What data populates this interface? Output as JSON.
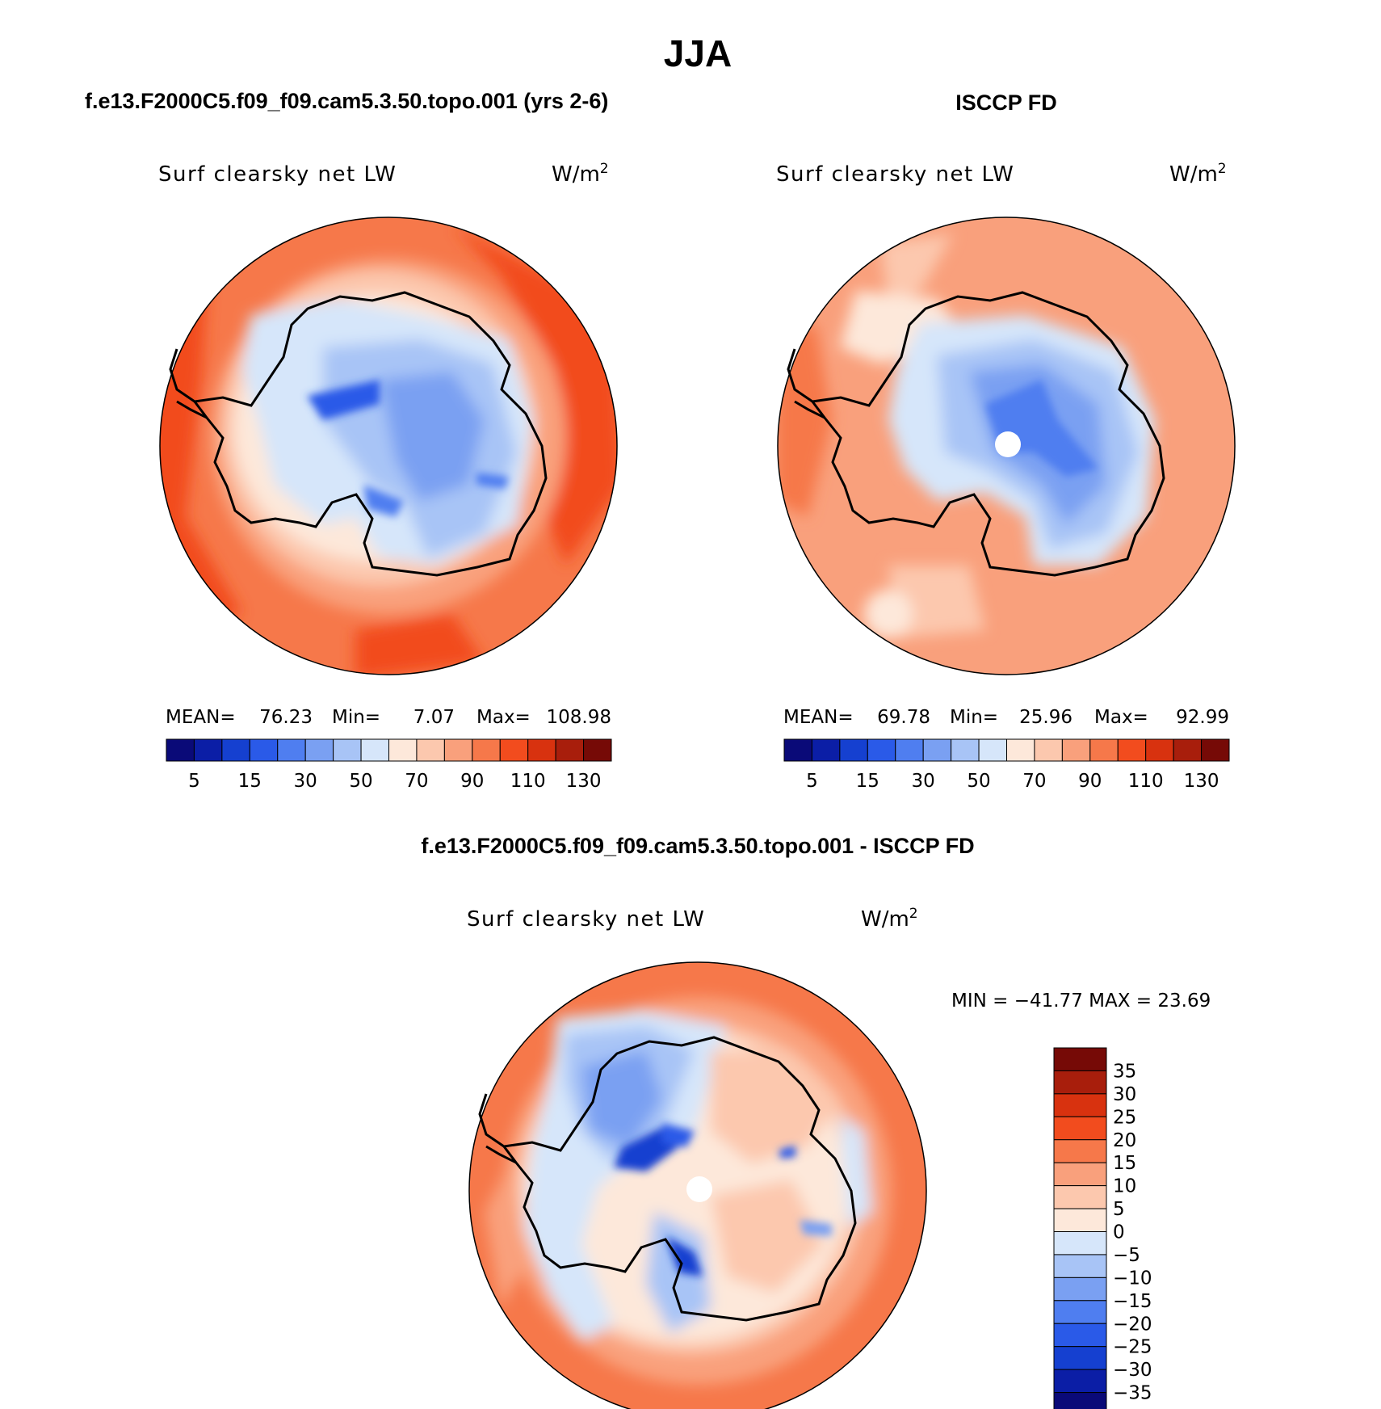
{
  "season_title": "JJA",
  "panels": {
    "model": {
      "header": "f.e13.F2000C5.f09_f09.cam5.3.50.topo.001 (yrs 2-6)",
      "variable": "Surf clearsky net LW",
      "units_base": "W/m",
      "units_exp": "2",
      "stats": {
        "mean_label": "MEAN=",
        "mean": "76.23",
        "min_label": "Min=",
        "min": "7.07",
        "max_label": "Max=",
        "max": "108.98"
      }
    },
    "obs": {
      "header": "ISCCP FD",
      "variable": "Surf clearsky net LW",
      "units_base": "W/m",
      "units_exp": "2",
      "stats": {
        "mean_label": "MEAN=",
        "mean": "69.78",
        "min_label": "Min=",
        "min": "25.96",
        "max_label": "Max=",
        "max": "92.99"
      }
    },
    "diff": {
      "header": "f.e13.F2000C5.f09_f09.cam5.3.50.topo.001 - ISCCP FD",
      "variable": "Surf clearsky net LW",
      "units_base": "W/m",
      "units_exp": "2",
      "minmax": "MIN = −41.77 MAX =  23.69"
    }
  },
  "abs_colorbar": {
    "colors": [
      "#0a0a78",
      "#0b1ea6",
      "#1540d0",
      "#2a5ae8",
      "#4f7ef0",
      "#7aa0f2",
      "#a8c4f6",
      "#d6e6fa",
      "#fde8da",
      "#fcc8ae",
      "#f9a07c",
      "#f6784a",
      "#f24c1e",
      "#d8320f",
      "#a81e0c",
      "#760a06"
    ],
    "ticks": [
      "5",
      "15",
      "30",
      "50",
      "70",
      "90",
      "110",
      "130"
    ]
  },
  "diff_colorbar": {
    "colors": [
      "#0a0a78",
      "#0b1ea6",
      "#1540d0",
      "#2a5ae8",
      "#4f7ef0",
      "#7aa0f2",
      "#a8c4f6",
      "#d6e6fa",
      "#fde8da",
      "#fcc8ae",
      "#f9a07c",
      "#f6784a",
      "#f24c1e",
      "#d8320f",
      "#a81e0c",
      "#760a06"
    ],
    "ticks": [
      "35",
      "30",
      "25",
      "20",
      "15",
      "10",
      "5",
      "0",
      "−5",
      "−10",
      "−15",
      "−20",
      "−25",
      "−30",
      "−35"
    ]
  }
}
